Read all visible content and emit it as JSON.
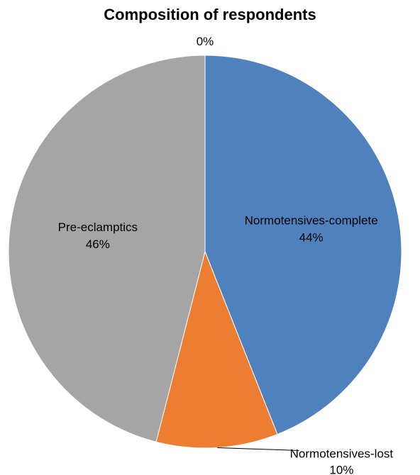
{
  "chart_data": {
    "type": "pie",
    "title": "Composition of respondents",
    "slices": [
      {
        "label": "Normotensives-complete",
        "value": 44,
        "display": "44%",
        "color": "#4F81BD"
      },
      {
        "label": "Normotensives-lost",
        "value": 10,
        "display": "10%",
        "color": "#ED7D31"
      },
      {
        "label": "Pre-eclamptics",
        "value": 46,
        "display": "46%",
        "color": "#A5A5A5"
      },
      {
        "label": "",
        "value": 0,
        "display": "0%",
        "color": "#FFC000"
      }
    ]
  }
}
